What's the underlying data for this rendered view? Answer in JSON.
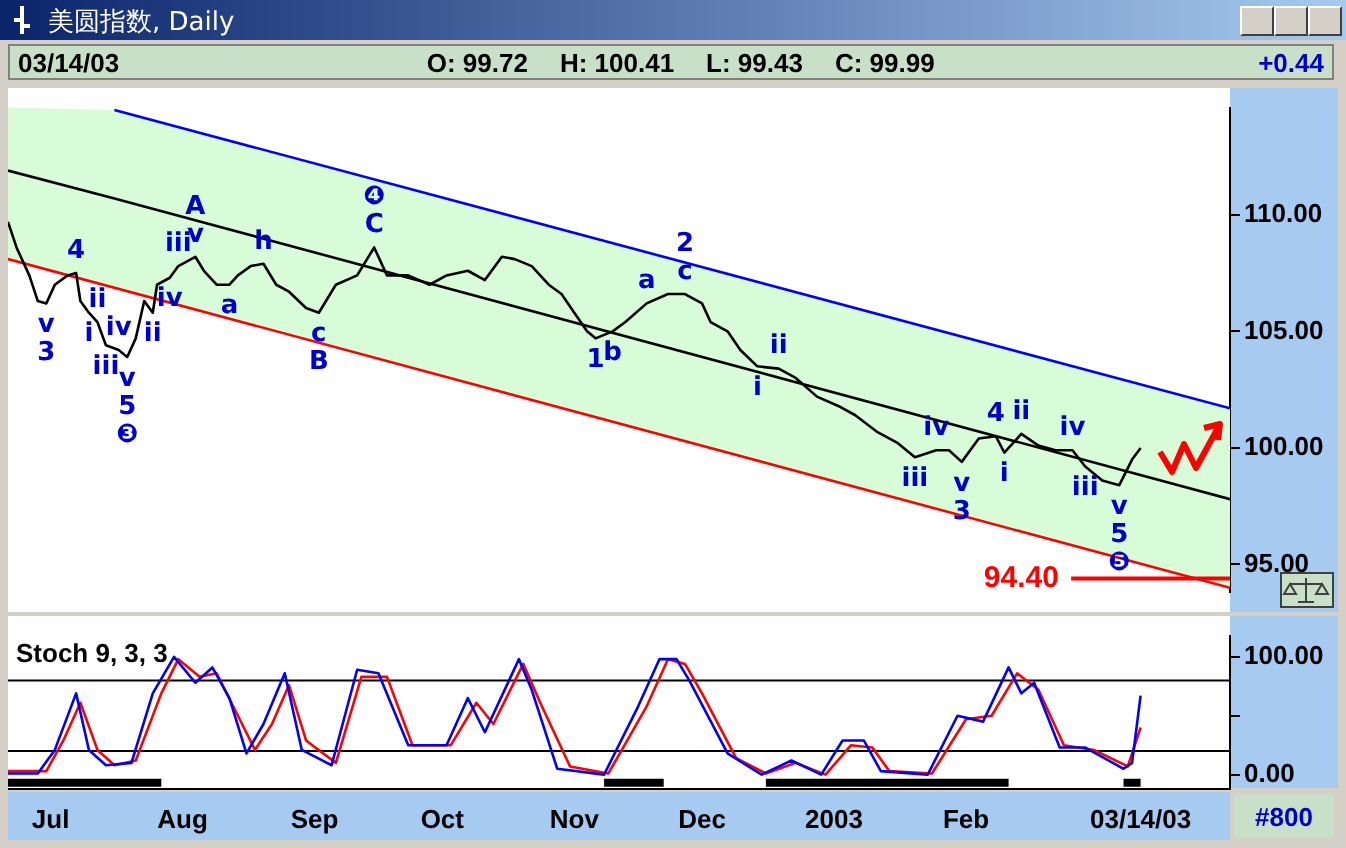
{
  "chart_data": [
    {
      "type": "line",
      "title": "美圆指数, Daily",
      "annotations": [
        "03/14/03",
        "O: 99.72",
        "H: 100.41",
        "L: 99.43",
        "C: 99.99",
        "+0.44",
        {
          "text": "v",
          "x": "2002-06-30",
          "y": 106.2
        },
        {
          "text": "3",
          "x": "2002-06-30",
          "y": 106.2
        },
        {
          "text": "4",
          "x": "2002-07-07",
          "y": 107.5
        },
        {
          "text": "i",
          "x": "2002-07-10",
          "y": 105.8
        },
        {
          "text": "ii",
          "x": "2002-07-12",
          "y": 105.4
        },
        {
          "text": "iii",
          "x": "2002-07-14",
          "y": 104.4
        },
        {
          "text": "iv",
          "x": "2002-07-17",
          "y": 104.2
        },
        {
          "text": "v",
          "x": "2002-07-19",
          "y": 103.9
        },
        {
          "text": "5",
          "x": "2002-07-19",
          "y": 103.9
        },
        {
          "text": "❸",
          "x": "2002-07-19",
          "y": 103.9
        },
        {
          "text": "ii",
          "x": "2002-07-25",
          "y": 105.8
        },
        {
          "text": "iv",
          "x": "2002-07-29",
          "y": 107.3
        },
        {
          "text": "iii",
          "x": "2002-07-31",
          "y": 107.8
        },
        {
          "text": "v",
          "x": "2002-08-04",
          "y": 108.2
        },
        {
          "text": "A",
          "x": "2002-08-04",
          "y": 108.2
        },
        {
          "text": "a",
          "x": "2002-08-12",
          "y": 107.0
        },
        {
          "text": "h",
          "x": "2002-08-20",
          "y": 107.9
        },
        {
          "text": "c",
          "x": "2002-09-02",
          "y": 105.8
        },
        {
          "text": "B",
          "x": "2002-09-02",
          "y": 105.8
        },
        {
          "text": "C",
          "x": "2002-09-15",
          "y": 108.6
        },
        {
          "text": "❹",
          "x": "2002-09-15",
          "y": 108.6
        },
        {
          "text": "1",
          "x": "2002-11-06",
          "y": 104.7
        },
        {
          "text": "b",
          "x": "2002-11-10",
          "y": 105.0
        },
        {
          "text": "a",
          "x": "2002-11-18",
          "y": 106.2
        },
        {
          "text": "c",
          "x": "2002-11-27",
          "y": 106.6
        },
        {
          "text": "2",
          "x": "2002-11-27",
          "y": 106.6
        },
        {
          "text": "i",
          "x": "2002-12-14",
          "y": 103.5
        },
        {
          "text": "ii",
          "x": "2002-12-19",
          "y": 103.4
        },
        {
          "text": "iii",
          "x": "2003-01-20",
          "y": 99.6
        },
        {
          "text": "iv",
          "x": "2003-01-25",
          "y": 99.9
        },
        {
          "text": "v",
          "x": "2003-01-31",
          "y": 99.4
        },
        {
          "text": "3",
          "x": "2003-01-31",
          "y": 99.4
        },
        {
          "text": "4",
          "x": "2003-02-08",
          "y": 100.5
        },
        {
          "text": "i",
          "x": "2003-02-10",
          "y": 99.8
        },
        {
          "text": "ii",
          "x": "2003-02-14",
          "y": 100.6
        },
        {
          "text": "iv",
          "x": "2003-02-26",
          "y": 99.9
        },
        {
          "text": "iii",
          "x": "2003-03-01",
          "y": 99.2
        },
        {
          "text": "v",
          "x": "2003-03-09",
          "y": 98.4
        },
        {
          "text": "5",
          "x": "2003-03-09",
          "y": 98.4
        },
        {
          "text": "❺",
          "x": "2003-03-09",
          "y": 98.4
        }
      ],
      "ref_lines": [
        {
          "axis": "y",
          "value": 94.4,
          "label": "94.40",
          "color": "#ff0000"
        }
      ],
      "xlim": [
        "2002-06-21",
        "2003-04-04"
      ],
      "ylim": [
        93.8,
        114.6
      ],
      "yticks": [
        {
          "value": 95,
          "label": "95.00"
        },
        {
          "value": 100,
          "label": "100.00"
        },
        {
          "value": 105,
          "label": "105.00"
        },
        {
          "value": 110,
          "label": "110.00"
        }
      ],
      "tick_labels": "y",
      "legend": false,
      "grid": false,
      "series": [
        {
          "color": "#000000",
          "x": [
            "2002-06-21",
            "2002-06-23",
            "2002-06-26",
            "2002-06-28",
            "2002-06-30",
            "2002-07-02",
            "2002-07-05",
            "2002-07-07",
            "2002-07-08",
            "2002-07-10",
            "2002-07-12",
            "2002-07-14",
            "2002-07-17",
            "2002-07-19",
            "2002-07-21",
            "2002-07-23",
            "2002-07-25",
            "2002-07-26",
            "2002-07-29",
            "2002-07-31",
            "2002-08-04",
            "2002-08-06",
            "2002-08-09",
            "2002-08-12",
            "2002-08-14",
            "2002-08-17",
            "2002-08-20",
            "2002-08-23",
            "2002-08-26",
            "2002-08-30",
            "2002-09-02",
            "2002-09-06",
            "2002-09-11",
            "2002-09-15",
            "2002-09-18",
            "2002-09-23",
            "2002-09-28",
            "2002-10-02",
            "2002-10-07",
            "2002-10-11",
            "2002-10-15",
            "2002-10-18",
            "2002-10-22",
            "2002-10-26",
            "2002-10-29",
            "2002-11-01",
            "2002-11-04",
            "2002-11-06",
            "2002-11-10",
            "2002-11-13",
            "2002-11-18",
            "2002-11-23",
            "2002-11-27",
            "2002-12-01",
            "2002-12-03",
            "2002-12-07",
            "2002-12-10",
            "2002-12-14",
            "2002-12-19",
            "2002-12-23",
            "2002-12-28",
            "2003-01-02",
            "2003-01-06",
            "2003-01-11",
            "2003-01-16",
            "2003-01-20",
            "2003-01-25",
            "2003-01-28",
            "2003-01-31",
            "2003-02-04",
            "2003-02-08",
            "2003-02-10",
            "2003-02-14",
            "2003-02-18",
            "2003-02-22",
            "2003-02-26",
            "2003-03-01",
            "2003-03-05",
            "2003-03-09",
            "2003-03-12",
            "2003-03-14"
          ],
          "values": [
            109.7,
            108.6,
            107.4,
            106.3,
            106.2,
            107.0,
            107.4,
            107.5,
            106.3,
            105.8,
            105.4,
            104.4,
            104.2,
            103.9,
            104.7,
            106.3,
            105.8,
            107.0,
            107.3,
            107.8,
            108.2,
            107.6,
            107.0,
            107.0,
            107.4,
            107.8,
            107.9,
            107.0,
            106.7,
            106.0,
            105.8,
            107.0,
            107.4,
            108.6,
            107.4,
            107.4,
            107.0,
            107.4,
            107.6,
            107.2,
            108.2,
            108.1,
            107.8,
            107.0,
            106.6,
            105.8,
            105.0,
            104.7,
            105.0,
            105.4,
            106.2,
            106.6,
            106.6,
            106.2,
            105.4,
            105.0,
            104.2,
            103.5,
            103.4,
            103.0,
            102.2,
            101.8,
            101.4,
            100.7,
            100.2,
            99.6,
            99.9,
            99.9,
            99.4,
            100.4,
            100.5,
            99.8,
            100.6,
            100.1,
            99.9,
            99.9,
            99.2,
            98.6,
            98.4,
            99.5,
            100.0
          ]
        },
        {
          "color": "#0000ff",
          "x": [
            "2002-07-16",
            "2003-04-04"
          ],
          "values": [
            114.5,
            101.7
          ]
        },
        {
          "color": "#000000",
          "x": [
            "2002-06-21",
            "2002-07-16",
            "2003-04-04"
          ],
          "values": [
            111.9,
            110.7,
            97.8
          ],
          "lower": [
            108.1,
            106.9,
            94.0
          ],
          "upper": [
            114.6,
            114.5,
            101.7
          ]
        },
        {
          "color": "#ff0000",
          "x": [
            "2002-06-21",
            "2003-04-04"
          ],
          "values": [
            108.1,
            94.0
          ]
        }
      ]
    },
    {
      "type": "line",
      "title": "Stoch 9, 3, 3",
      "annotations": [
        "#800"
      ],
      "xlim": [
        "2002-06-21",
        "2003-04-04"
      ],
      "ylim": [
        -12,
        118
      ],
      "xticks": [
        {
          "value": "2002-07-01",
          "label": "Jul"
        },
        {
          "value": "2002-08-01",
          "label": "Aug"
        },
        {
          "value": "2002-09-01",
          "label": "Sep"
        },
        {
          "value": "2002-10-01",
          "label": "Oct"
        },
        {
          "value": "2002-11-01",
          "label": "Nov"
        },
        {
          "value": "2002-12-01",
          "label": "Dec"
        },
        {
          "value": "2003-01-01",
          "label": "2003"
        },
        {
          "value": "2003-02-01",
          "label": "Feb"
        },
        {
          "value": "2003-03-14",
          "label": "03/14/03"
        }
      ],
      "yticks": [
        {
          "value": 100,
          "label": "100.00"
        },
        {
          "value": 50,
          "label": null
        },
        {
          "value": 0,
          "label": "0.00"
        }
      ],
      "legend": false,
      "grid": false,
      "ref_lines": [
        {
          "axis": "y",
          "value": 80,
          "color": "#000000"
        },
        {
          "axis": "y",
          "value": 20,
          "color": "#000000"
        }
      ],
      "bands": [
        {
          "axis": "x",
          "from": "2002-06-21",
          "to": "2002-07-27",
          "color": "#000000"
        },
        {
          "axis": "x",
          "from": "2002-11-08",
          "to": "2002-11-22",
          "color": "#000000"
        },
        {
          "axis": "x",
          "from": "2002-12-16",
          "to": "2003-02-11",
          "color": "#000000"
        },
        {
          "axis": "x",
          "from": "2003-03-10",
          "to": "2003-03-14",
          "color": "#000000"
        }
      ],
      "series": [
        {
          "color": "#0000ff",
          "x": [
            "2002-06-21",
            "2002-06-28",
            "2002-07-02",
            "2002-07-07",
            "2002-07-10",
            "2002-07-14",
            "2002-07-20",
            "2002-07-25",
            "2002-07-30",
            "2002-08-04",
            "2002-08-08",
            "2002-08-12",
            "2002-08-16",
            "2002-08-20",
            "2002-08-25",
            "2002-08-29",
            "2002-09-05",
            "2002-09-11",
            "2002-09-16",
            "2002-09-23",
            "2002-10-02",
            "2002-10-07",
            "2002-10-11",
            "2002-10-19",
            "2002-10-22",
            "2002-10-28",
            "2002-11-08",
            "2002-11-16",
            "2002-11-21",
            "2002-11-25",
            "2002-11-28",
            "2002-12-07",
            "2002-12-15",
            "2002-12-22",
            "2002-12-29",
            "2003-01-03",
            "2003-01-08",
            "2003-01-12",
            "2003-01-23",
            "2003-01-30",
            "2003-02-05",
            "2003-02-11",
            "2003-02-14",
            "2003-02-17",
            "2003-02-23",
            "2003-03-01",
            "2003-03-10",
            "2003-03-12",
            "2003-03-14"
          ],
          "values": [
            1,
            1,
            21,
            69,
            21,
            8,
            10,
            69,
            100,
            78,
            91,
            65,
            18,
            43,
            86,
            21,
            8,
            89,
            86,
            25,
            25,
            65,
            36,
            98,
            72,
            5,
            0,
            58,
            98,
            98,
            80,
            18,
            0,
            12,
            0,
            29,
            29,
            3,
            0,
            50,
            45,
            91,
            69,
            78,
            23,
            23,
            5,
            10,
            67
          ]
        },
        {
          "color": "#ff0000",
          "x": [
            "2002-06-21",
            "2002-06-30",
            "2002-07-04",
            "2002-07-08",
            "2002-07-12",
            "2002-07-16",
            "2002-07-21",
            "2002-07-27",
            "2002-07-31",
            "2002-08-05",
            "2002-08-09",
            "2002-08-14",
            "2002-08-18",
            "2002-08-22",
            "2002-08-26",
            "2002-08-30",
            "2002-09-06",
            "2002-09-12",
            "2002-09-18",
            "2002-09-24",
            "2002-10-03",
            "2002-10-09",
            "2002-10-13",
            "2002-10-20",
            "2002-10-24",
            "2002-10-31",
            "2002-11-09",
            "2002-11-18",
            "2002-11-23",
            "2002-11-27",
            "2002-12-01",
            "2002-12-09",
            "2002-12-16",
            "2002-12-23",
            "2002-12-30",
            "2003-01-05",
            "2003-01-10",
            "2003-01-14",
            "2003-01-24",
            "2003-02-01",
            "2003-02-07",
            "2003-02-13",
            "2003-02-18",
            "2003-02-24",
            "2003-03-03",
            "2003-03-11",
            "2003-03-14"
          ],
          "values": [
            3,
            3,
            29,
            61,
            21,
            8,
            12,
            69,
            98,
            83,
            86,
            50,
            21,
            43,
            76,
            29,
            10,
            83,
            83,
            25,
            25,
            61,
            43,
            94,
            61,
            7,
            1,
            58,
            98,
            94,
            69,
            14,
            1,
            10,
            0,
            25,
            23,
            3,
            1,
            47,
            50,
            86,
            72,
            25,
            21,
            7,
            40
          ]
        }
      ]
    }
  ]
}
